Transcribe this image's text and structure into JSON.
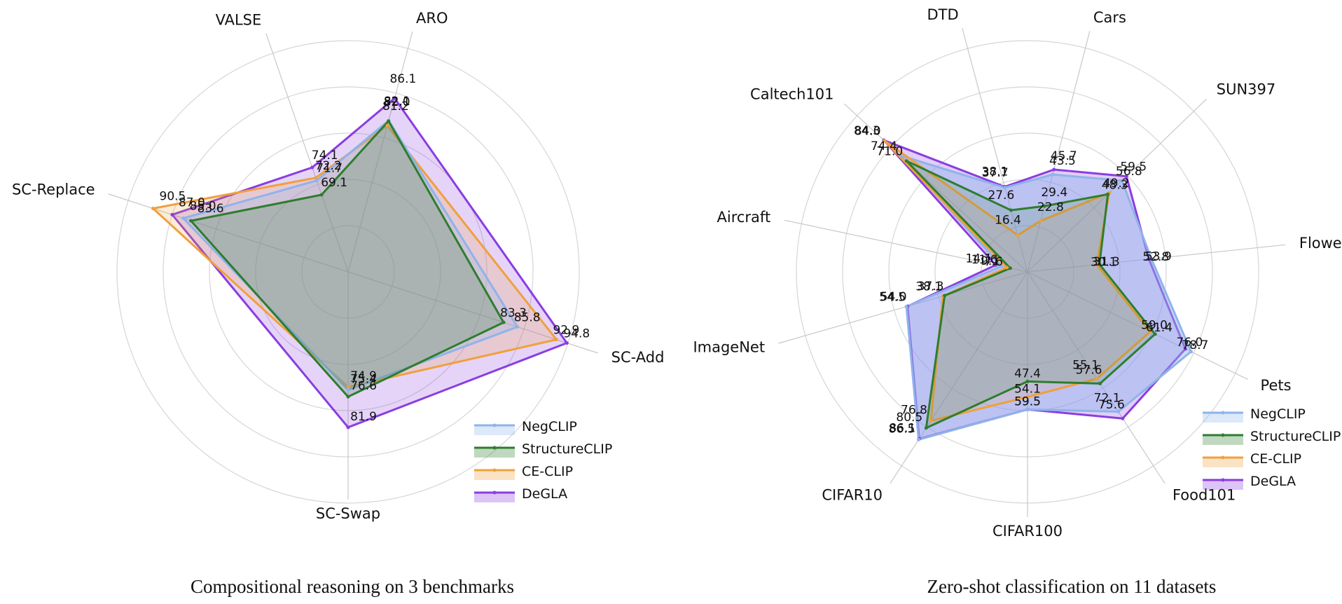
{
  "chart_data": [
    {
      "type": "radar",
      "caption": "Compositional reasoning on 3 benchmarks",
      "axes": [
        "ARO",
        "SC-Add",
        "SC-Swap",
        "SC-Replace",
        "VALSE"
      ],
      "legend_position": "bottom-right",
      "grid": true,
      "series": [
        {
          "name": "NegCLIP",
          "color": "#8fb3ea",
          "fill_opacity": 0.28,
          "values": [
            82.1,
            85.8,
            75.4,
            85.0,
            71.7
          ]
        },
        {
          "name": "StructureCLIP",
          "color": "#2e7d2e",
          "fill_opacity": 0.22,
          "values": [
            82.0,
            83.3,
            76.6,
            83.6,
            69.1
          ]
        },
        {
          "name": "CE-CLIP",
          "color": "#f0a03c",
          "fill_opacity": 0.2,
          "values": [
            81.2,
            92.9,
            74.9,
            90.5,
            72.2
          ]
        },
        {
          "name": "DeGLA",
          "color": "#8a3de0",
          "fill_opacity": 0.22,
          "values": [
            86.1,
            94.8,
            81.9,
            87.0,
            74.1
          ]
        }
      ]
    },
    {
      "type": "radar",
      "caption": "Zero-shot classification on 11 datasets",
      "axes": [
        "Cars",
        "SUN397",
        "Flowers",
        "Pets",
        "Food101",
        "CIFAR100",
        "CIFAR10",
        "ImageNet",
        "Aircraft",
        "Caltech101",
        "DTD"
      ],
      "legend_position": "bottom-right",
      "grid": true,
      "series": [
        {
          "name": "NegCLIP",
          "color": "#8fb3ea",
          "fill_opacity": 0.45,
          "values": [
            43.5,
            56.8,
            53.9,
            78.7,
            72.1,
            59.5,
            86.5,
            54.5,
            11.6,
            74.4,
            37.7
          ]
        },
        {
          "name": "StructureCLIP",
          "color": "#2e7d2e",
          "fill_opacity": 0.15,
          "values": [
            29.4,
            48.3,
            31.3,
            61.4,
            57.6,
            47.4,
            80.5,
            37.3,
            7.6,
            71.0,
            27.6
          ]
        },
        {
          "name": "CE-CLIP",
          "color": "#f0a03c",
          "fill_opacity": 0.15,
          "values": [
            22.8,
            49.2,
            30.1,
            59.0,
            55.1,
            54.1,
            76.8,
            38.1,
            9.1,
            84.0,
            16.4
          ]
        },
        {
          "name": "DeGLA",
          "color": "#8a3de0",
          "fill_opacity": 0.25,
          "values": [
            45.7,
            59.5,
            52.8,
            76.0,
            75.6,
            59.5,
            86.1,
            54.0,
            14.1,
            84.3,
            38.1
          ]
        }
      ]
    }
  ]
}
